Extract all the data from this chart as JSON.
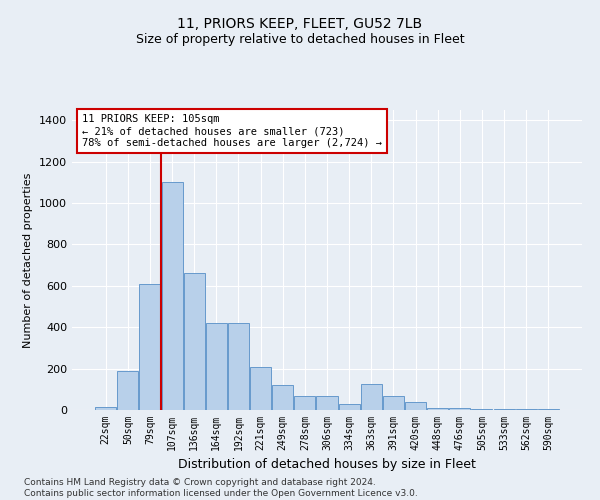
{
  "title": "11, PRIORS KEEP, FLEET, GU52 7LB",
  "subtitle": "Size of property relative to detached houses in Fleet",
  "xlabel": "Distribution of detached houses by size in Fleet",
  "ylabel": "Number of detached properties",
  "footnote": "Contains HM Land Registry data © Crown copyright and database right 2024.\nContains public sector information licensed under the Open Government Licence v3.0.",
  "categories": [
    "22sqm",
    "50sqm",
    "79sqm",
    "107sqm",
    "136sqm",
    "164sqm",
    "192sqm",
    "221sqm",
    "249sqm",
    "278sqm",
    "306sqm",
    "334sqm",
    "363sqm",
    "391sqm",
    "420sqm",
    "448sqm",
    "476sqm",
    "505sqm",
    "533sqm",
    "562sqm",
    "590sqm"
  ],
  "values": [
    15,
    190,
    610,
    1100,
    660,
    420,
    420,
    210,
    120,
    70,
    70,
    30,
    125,
    70,
    40,
    10,
    10,
    5,
    5,
    5,
    5
  ],
  "bar_color": "#b8d0ea",
  "bar_edge_color": "#6699cc",
  "vline_color": "#cc0000",
  "vline_x_index": 3,
  "annotation_text": "11 PRIORS KEEP: 105sqm\n← 21% of detached houses are smaller (723)\n78% of semi-detached houses are larger (2,724) →",
  "annotation_box_color": "#ffffff",
  "annotation_box_edge": "#cc0000",
  "ylim": [
    0,
    1450
  ],
  "yticks": [
    0,
    200,
    400,
    600,
    800,
    1000,
    1200,
    1400
  ],
  "bg_color": "#e8eef5",
  "plot_bg_color": "#e8eef5",
  "grid_color": "#ffffff",
  "title_fontsize": 10,
  "subtitle_fontsize": 9,
  "footnote_fontsize": 6.5
}
